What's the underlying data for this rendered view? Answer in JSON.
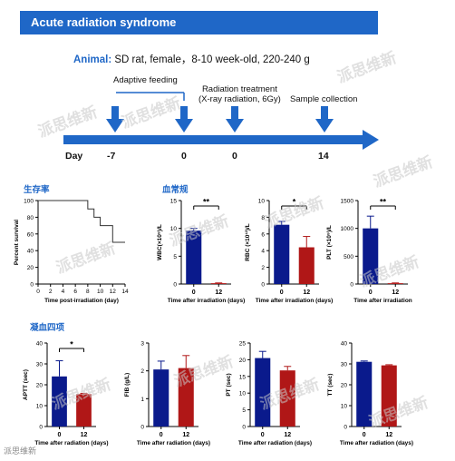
{
  "header": {
    "title": "Acute radiation syndrome"
  },
  "animal": {
    "label": "Animal:",
    "text": "SD rat, female，8-10 week-old, 220-240 g"
  },
  "timeline": {
    "day_label": "Day",
    "events": [
      {
        "label": "Adaptive feeding"
      },
      {
        "label": "Radiation treatment\n(X-ray radiation, 6Gy)"
      },
      {
        "label": "Sample collection"
      }
    ],
    "days": [
      "-7",
      "0",
      "0",
      "14"
    ]
  },
  "sections": {
    "survival": "生存率",
    "blood": "血常规",
    "coag": "凝血四项"
  },
  "watermark": "派思维新",
  "footer": "派思维新",
  "colors": {
    "blue": "#0a1a8c",
    "red": "#b01717",
    "accent": "#1f67c7"
  },
  "chart_data": [
    {
      "type": "line",
      "id": "survival",
      "ylabel": "Percent survival",
      "xlabel": "Time post-irradiation (day)",
      "xlim": [
        0,
        14
      ],
      "ylim": [
        0,
        100
      ],
      "xticks": [
        0,
        2,
        4,
        6,
        8,
        10,
        12,
        14
      ],
      "yticks": [
        0,
        20,
        40,
        60,
        80,
        100
      ],
      "steps": [
        [
          0,
          100
        ],
        [
          8,
          100
        ],
        [
          8,
          90
        ],
        [
          9,
          90
        ],
        [
          9,
          80
        ],
        [
          10,
          80
        ],
        [
          10,
          70
        ],
        [
          12,
          70
        ],
        [
          12,
          50
        ],
        [
          14,
          50
        ]
      ]
    },
    {
      "type": "bar",
      "id": "wbc",
      "ylabel": "WBC(×10⁹)/L",
      "xlabel": "Time after irradiation (days)",
      "categories": [
        "0",
        "12"
      ],
      "values": [
        9.6,
        0.15
      ],
      "errors": [
        0.4,
        0.05
      ],
      "ylim": [
        0,
        15
      ],
      "yticks": [
        0,
        5,
        10,
        15
      ],
      "sig": "**"
    },
    {
      "type": "bar",
      "id": "rbc",
      "ylabel": "RBC (×10¹²)/L",
      "xlabel": "Time after irradiation (days)",
      "categories": [
        "0",
        "12"
      ],
      "values": [
        7.1,
        4.4
      ],
      "errors": [
        0.4,
        1.3
      ],
      "ylim": [
        0,
        10
      ],
      "yticks": [
        0,
        2,
        4,
        6,
        8,
        10
      ],
      "sig": "*"
    },
    {
      "type": "bar",
      "id": "plt",
      "ylabel": "PLT (×10⁹)/L",
      "xlabel": "Time after irradiation",
      "categories": [
        "0",
        "12"
      ],
      "values": [
        1000,
        15
      ],
      "errors": [
        220,
        5
      ],
      "ylim": [
        0,
        1500
      ],
      "yticks": [
        0,
        500,
        1000,
        1500
      ],
      "sig": "**"
    },
    {
      "type": "bar",
      "id": "aptt",
      "ylabel": "APTT (sec)",
      "xlabel": "Time after radiation (days)",
      "categories": [
        "0",
        "12"
      ],
      "values": [
        24,
        15.5
      ],
      "errors": [
        7.5,
        0.4
      ],
      "ylim": [
        0,
        40
      ],
      "yticks": [
        0,
        10,
        20,
        30,
        40
      ],
      "sig": "*"
    },
    {
      "type": "bar",
      "id": "fib",
      "ylabel": "FIB (g/L)",
      "xlabel": "Time after radiation (days)",
      "categories": [
        "0",
        "12"
      ],
      "values": [
        2.05,
        2.1
      ],
      "errors": [
        0.3,
        0.45
      ],
      "ylim": [
        0,
        3
      ],
      "yticks": [
        0,
        1,
        2,
        3
      ],
      "sig": ""
    },
    {
      "type": "bar",
      "id": "pt",
      "ylabel": "PT (sec)",
      "xlabel": "Time after radiation (days)",
      "categories": [
        "0",
        "12"
      ],
      "values": [
        20.5,
        16.8
      ],
      "errors": [
        2.0,
        1.2
      ],
      "ylim": [
        0,
        25
      ],
      "yticks": [
        0,
        5,
        10,
        15,
        20,
        25
      ],
      "sig": ""
    },
    {
      "type": "bar",
      "id": "tt",
      "ylabel": "TT (sec)",
      "xlabel": "Time after radiation (days)",
      "categories": [
        "0",
        "12"
      ],
      "values": [
        31,
        29.3
      ],
      "errors": [
        0.4,
        0.3
      ],
      "ylim": [
        0,
        40
      ],
      "yticks": [
        0,
        10,
        20,
        30,
        40
      ],
      "sig": ""
    }
  ]
}
